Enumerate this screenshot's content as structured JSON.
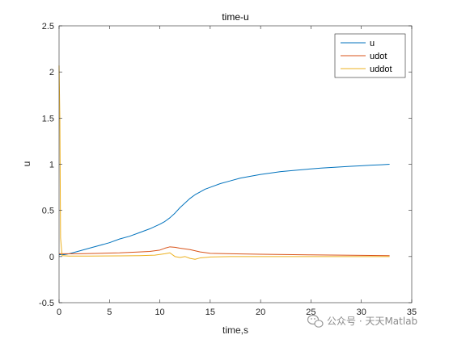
{
  "watermark": {
    "text": "公众号 · 天天Matlab",
    "icon": "wechat-icon"
  },
  "chart_data": {
    "type": "line",
    "title": "time-u",
    "xlabel": "time,s",
    "ylabel": "u",
    "xlim": [
      0,
      35
    ],
    "ylim": [
      -0.5,
      2.5
    ],
    "xticks": [
      0,
      5,
      10,
      15,
      20,
      25,
      30,
      35
    ],
    "yticks": [
      -0.5,
      0,
      0.5,
      1,
      1.5,
      2,
      2.5
    ],
    "xtick_labels": [
      "0",
      "5",
      "10",
      "15",
      "20",
      "25",
      "30",
      "35"
    ],
    "ytick_labels": [
      "-0.5",
      "0",
      "0.5",
      "1",
      "1.5",
      "2",
      "2.5"
    ],
    "grid": false,
    "legend_position": "top-right",
    "series": [
      {
        "name": "u",
        "color": "#0072BD",
        "x": [
          0,
          0.5,
          1,
          2,
          3,
          4,
          5,
          6,
          7,
          8,
          9,
          10,
          10.5,
          11,
          11.5,
          12,
          12.5,
          13,
          13.5,
          14,
          14.5,
          15,
          16,
          17,
          18,
          19,
          20,
          21,
          22,
          23,
          24,
          25,
          26,
          27,
          28,
          29,
          30,
          31,
          32,
          32.8
        ],
        "y": [
          0.02,
          0.02,
          0.03,
          0.06,
          0.09,
          0.12,
          0.15,
          0.19,
          0.22,
          0.26,
          0.3,
          0.35,
          0.38,
          0.42,
          0.47,
          0.53,
          0.58,
          0.63,
          0.67,
          0.7,
          0.73,
          0.75,
          0.79,
          0.82,
          0.85,
          0.87,
          0.89,
          0.905,
          0.92,
          0.93,
          0.94,
          0.95,
          0.958,
          0.965,
          0.972,
          0.978,
          0.984,
          0.99,
          0.995,
          1.0
        ]
      },
      {
        "name": "udot",
        "color": "#D95319",
        "x": [
          0,
          0.5,
          1,
          2,
          4,
          6,
          8,
          9,
          10,
          10.5,
          11,
          11.5,
          12,
          13,
          14,
          15,
          17,
          20,
          25,
          30,
          32.8
        ],
        "y": [
          0.03,
          0.03,
          0.03,
          0.03,
          0.035,
          0.04,
          0.05,
          0.055,
          0.07,
          0.09,
          0.105,
          0.1,
          0.09,
          0.075,
          0.05,
          0.035,
          0.03,
          0.025,
          0.018,
          0.013,
          0.01
        ]
      },
      {
        "name": "uddot",
        "color": "#EDB120",
        "x": [
          0,
          0.08,
          0.15,
          0.3,
          1,
          3,
          6,
          8,
          9.5,
          10.5,
          11,
          11.5,
          12,
          12.5,
          13,
          13.5,
          14,
          15,
          17,
          20,
          25,
          30,
          32.8
        ],
        "y": [
          2.07,
          1.5,
          0.2,
          0.01,
          0.005,
          0.005,
          0.007,
          0.01,
          0.015,
          0.03,
          0.04,
          0.0,
          -0.01,
          0.0,
          -0.02,
          -0.03,
          -0.015,
          -0.005,
          0.0,
          0.0,
          0.0,
          0.0,
          0.0
        ]
      }
    ]
  }
}
